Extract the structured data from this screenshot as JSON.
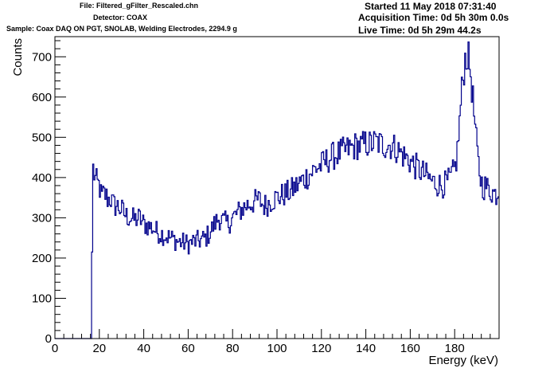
{
  "header": {
    "file": "File: Filtered_gFilter_Rescaled.chn",
    "detector": "Detector: COAX",
    "sample": "Sample: Coax DAQ ON PGT, SNOLAB, Welding Electrodes, 2294.9 g",
    "started": "Started 11 May 2018 07:31:40",
    "acquisition_time": "Acquisition Time: 0d 5h 30m 0.0s",
    "live_time": "Live Time: 0d 5h 29m 44.2s"
  },
  "colors": {
    "series": "#00008b",
    "axis": "#000000"
  },
  "chart_data": {
    "type": "line",
    "title": "",
    "xlabel": "Energy (keV)",
    "ylabel": "Counts",
    "xlim": [
      0,
      200
    ],
    "ylim": [
      0,
      750
    ],
    "x_ticks": [
      0,
      20,
      40,
      60,
      80,
      100,
      120,
      140,
      160,
      180
    ],
    "y_ticks": [
      0,
      100,
      200,
      300,
      400,
      500,
      600,
      700
    ],
    "grid": false,
    "legend": "none",
    "series": [
      {
        "style": "histogram-step",
        "x": [
          0,
          16.5,
          17,
          18,
          19,
          20,
          21,
          22,
          23,
          24,
          25,
          26,
          27,
          28,
          29,
          30,
          32,
          34,
          36,
          38,
          40,
          42,
          44,
          46,
          48,
          50,
          52,
          54,
          56,
          58,
          60,
          62,
          64,
          66,
          68,
          70,
          72,
          74,
          76,
          78,
          80,
          82,
          84,
          86,
          88,
          90,
          92,
          94,
          96,
          98,
          100,
          102,
          104,
          106,
          108,
          110,
          112,
          114,
          116,
          118,
          120,
          122,
          124,
          126,
          128,
          130,
          132,
          134,
          136,
          138,
          140,
          142,
          144,
          146,
          148,
          150,
          152,
          154,
          156,
          158,
          160,
          162,
          164,
          166,
          168,
          170,
          172,
          174,
          176,
          178,
          180,
          181,
          182,
          183,
          184,
          185,
          186,
          187,
          188,
          189,
          190,
          191,
          192,
          193,
          194,
          195,
          196,
          197,
          198,
          199,
          200
        ],
        "y": [
          0,
          0,
          430,
          400,
          385,
          380,
          350,
          360,
          355,
          345,
          350,
          335,
          330,
          330,
          325,
          320,
          305,
          300,
          295,
          300,
          285,
          280,
          275,
          265,
          260,
          255,
          250,
          245,
          240,
          238,
          235,
          240,
          242,
          245,
          250,
          265,
          285,
          300,
          290,
          285,
          300,
          310,
          320,
          330,
          335,
          340,
          345,
          330,
          335,
          345,
          350,
          355,
          360,
          365,
          375,
          385,
          395,
          405,
          415,
          425,
          430,
          440,
          450,
          455,
          460,
          465,
          470,
          475,
          480,
          478,
          485,
          482,
          488,
          485,
          480,
          482,
          478,
          470,
          460,
          450,
          440,
          430,
          420,
          410,
          400,
          390,
          385,
          380,
          385,
          395,
          420,
          450,
          520,
          600,
          660,
          705,
          700,
          670,
          610,
          540,
          470,
          420,
          390,
          375,
          380,
          372,
          368,
          365,
          360,
          360,
          370
        ]
      }
    ]
  }
}
